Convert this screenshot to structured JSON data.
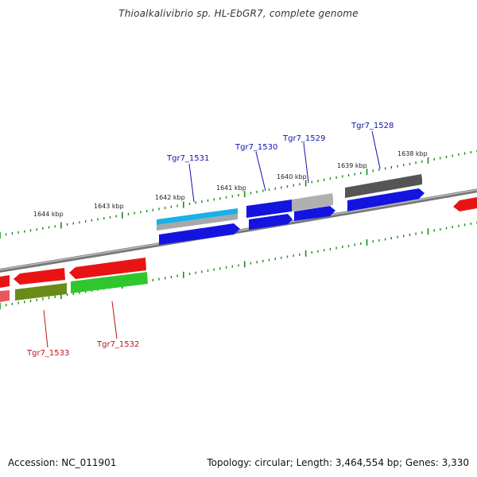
{
  "title": "Thioalkalivibrio sp. HL-EbGR7, complete genome",
  "footer": {
    "accession": "Accession: NC_011901",
    "info": "Topology: circular; Length: 3,464,554 bp; Genes: 3,330"
  },
  "colors": {
    "backbone": "#8a8a8a",
    "tick": "#1a8a1a",
    "plus_label": "#1010b0",
    "minus_label": "#c01010",
    "blue": "#1414e0",
    "red": "#e81414",
    "grey": "#909090",
    "darkgrey": "#505050",
    "cyan": "#1ab0e8",
    "green": "#2ec82e",
    "olive": "#6a8a1a",
    "pink": "#e85a5a"
  },
  "scale_labels": [
    "1644 kbp",
    "1643 kbp",
    "1642 kbp",
    "1641 kbp",
    "1640 kbp",
    "1639 kbp",
    "1638 kbp"
  ],
  "gene_labels": [
    {
      "text": "Tgr7_1531",
      "strand": "plus"
    },
    {
      "text": "Tgr7_1530",
      "strand": "plus"
    },
    {
      "text": "Tgr7_1529",
      "strand": "plus"
    },
    {
      "text": "Tgr7_1528",
      "strand": "plus"
    },
    {
      "text": "Tgr7_1533",
      "strand": "minus"
    },
    {
      "text": "Tgr7_1532",
      "strand": "minus"
    }
  ]
}
